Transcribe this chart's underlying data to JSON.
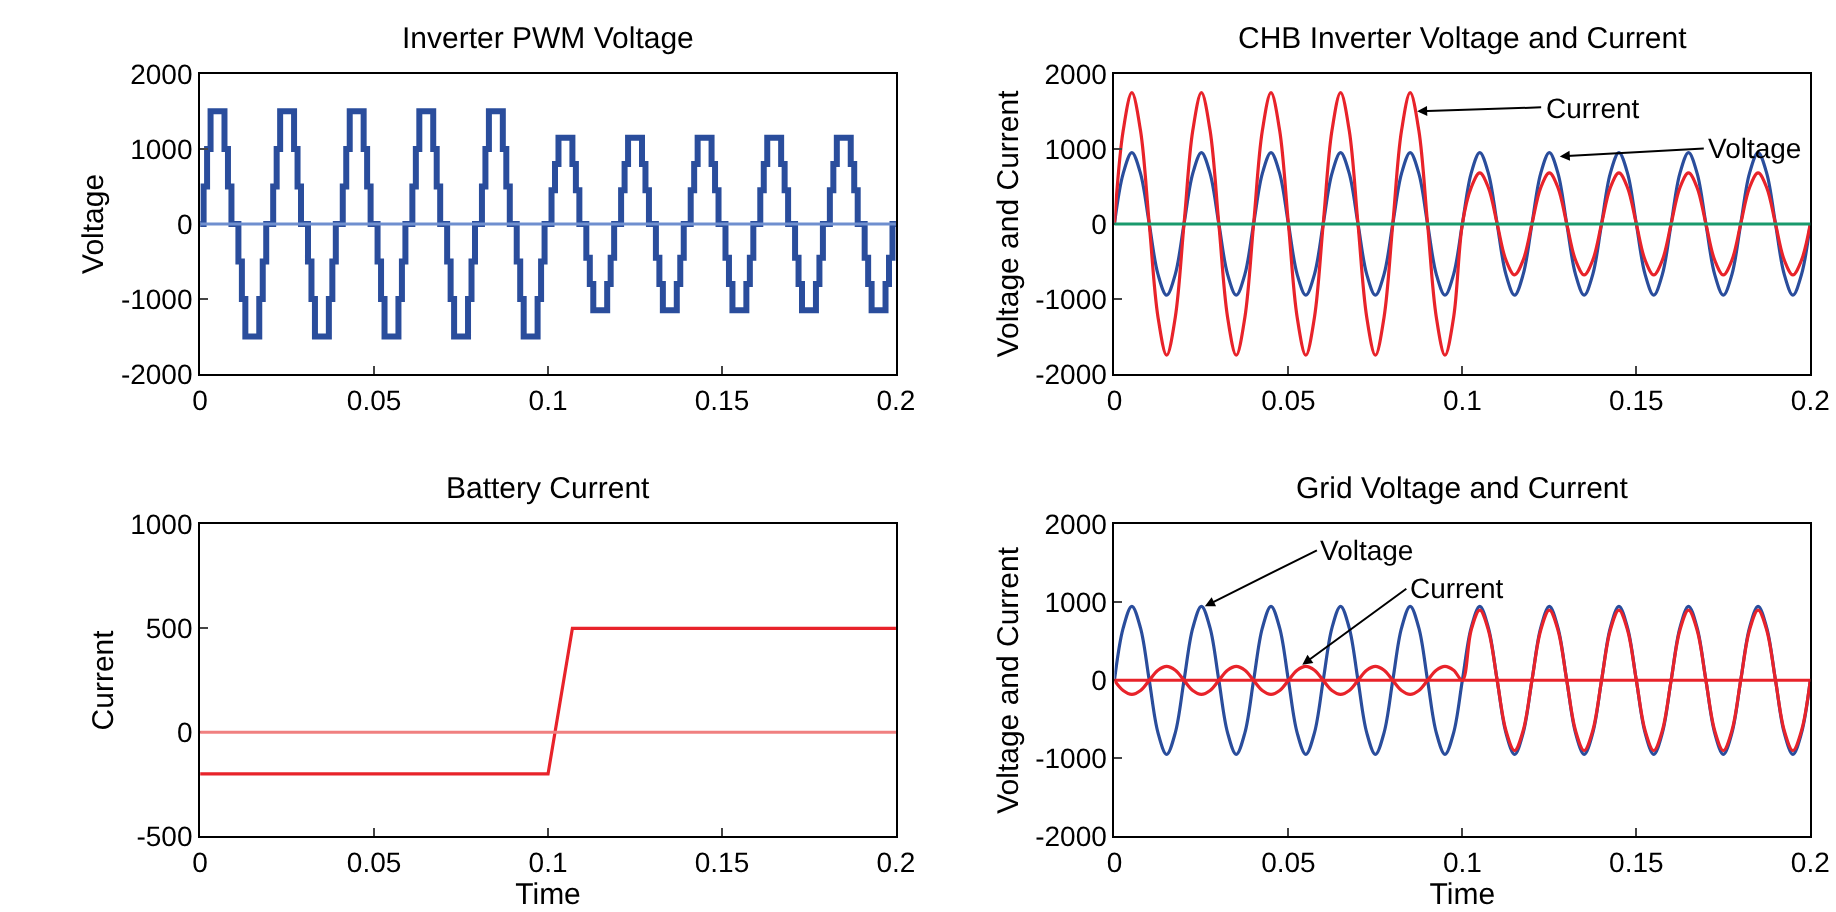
{
  "chart_data": [
    {
      "type": "step",
      "title": "Inverter PWM Voltage",
      "ylabel": "Voltage",
      "xlim": [
        0,
        0.2
      ],
      "ylim": [
        -2000,
        2000
      ],
      "xticks": [
        0,
        0.05,
        0.1,
        0.15,
        0.2
      ],
      "yticks": [
        -2000,
        -1000,
        0,
        1000,
        2000
      ],
      "ref_lines": [
        {
          "axis": "y",
          "value": 0,
          "color": "#6f8fcf"
        }
      ],
      "series": [
        {
          "color": "#2a4d9c",
          "x": [
            0,
            0.001,
            0.002,
            0.003,
            0.007,
            0.008,
            0.009,
            0.01,
            0.011,
            0.012,
            0.013,
            0.017,
            0.018,
            0.019,
            0.02,
            0.021,
            0.022,
            0.023,
            0.027,
            0.028,
            0.029,
            0.03,
            0.031,
            0.032,
            0.033,
            0.037,
            0.038,
            0.039,
            0.04,
            0.041,
            0.042,
            0.043,
            0.047,
            0.048,
            0.049,
            0.05,
            0.051,
            0.052,
            0.053,
            0.057,
            0.058,
            0.059,
            0.06,
            0.061,
            0.062,
            0.063,
            0.067,
            0.068,
            0.069,
            0.07,
            0.071,
            0.072,
            0.073,
            0.077,
            0.078,
            0.079,
            0.08,
            0.081,
            0.082,
            0.083,
            0.087,
            0.088,
            0.089,
            0.09,
            0.091,
            0.092,
            0.093,
            0.097,
            0.098,
            0.099,
            0.1,
            0.101,
            0.102,
            0.103,
            0.107,
            0.108,
            0.109,
            0.11,
            0.111,
            0.112,
            0.113,
            0.117,
            0.118,
            0.119,
            0.12,
            0.121,
            0.122,
            0.123,
            0.127,
            0.128,
            0.129,
            0.13,
            0.131,
            0.132,
            0.133,
            0.137,
            0.138,
            0.139,
            0.14,
            0.141,
            0.142,
            0.143,
            0.147,
            0.148,
            0.149,
            0.15,
            0.151,
            0.152,
            0.153,
            0.157,
            0.158,
            0.159,
            0.16,
            0.161,
            0.162,
            0.163,
            0.167,
            0.168,
            0.169,
            0.17,
            0.171,
            0.172,
            0.173,
            0.177,
            0.178,
            0.179,
            0.18,
            0.181,
            0.182,
            0.183,
            0.187,
            0.188,
            0.189,
            0.19,
            0.191,
            0.192,
            0.193,
            0.197,
            0.198,
            0.199,
            0.2
          ],
          "values": [
            0,
            500,
            1000,
            1500,
            1000,
            500,
            0,
            0,
            -500,
            -1000,
            -1500,
            -1000,
            -500,
            0,
            0,
            500,
            1000,
            1500,
            1000,
            500,
            0,
            0,
            -500,
            -1000,
            -1500,
            -1000,
            -500,
            0,
            0,
            500,
            1000,
            1500,
            1000,
            500,
            0,
            0,
            -500,
            -1000,
            -1500,
            -1000,
            -500,
            0,
            0,
            500,
            1000,
            1500,
            1000,
            500,
            0,
            0,
            -500,
            -1000,
            -1500,
            -1000,
            -500,
            0,
            0,
            500,
            1000,
            1500,
            1000,
            500,
            0,
            0,
            -500,
            -1000,
            -1500,
            -1000,
            -500,
            0,
            0,
            450,
            800,
            1150,
            800,
            450,
            0,
            0,
            -450,
            -800,
            -1150,
            -800,
            -450,
            0,
            0,
            450,
            800,
            1150,
            800,
            450,
            0,
            0,
            -450,
            -800,
            -1150,
            -800,
            -450,
            0,
            0,
            450,
            800,
            1150,
            800,
            450,
            0,
            0,
            -450,
            -800,
            -1150,
            -800,
            -450,
            0,
            0,
            450,
            800,
            1150,
            800,
            450,
            0,
            0,
            -450,
            -800,
            -1150,
            -800,
            -450,
            0,
            0,
            450,
            800,
            1150,
            800,
            450,
            0,
            0,
            -450,
            -800,
            -1150,
            -800,
            -450,
            0,
            0
          ]
        }
      ]
    },
    {
      "type": "line",
      "title": "CHB Inverter Voltage and Current",
      "ylabel": "Voltage and Current",
      "xlim": [
        0,
        0.2
      ],
      "ylim": [
        -2000,
        2000
      ],
      "xticks": [
        0,
        0.05,
        0.1,
        0.15,
        0.2
      ],
      "yticks": [
        -2000,
        -1000,
        0,
        1000,
        2000
      ],
      "ref_lines": [
        {
          "axis": "y",
          "value": 0,
          "color": "#1a9a6c"
        }
      ],
      "annotations": [
        {
          "text": "Current",
          "x": 0.087,
          "y": 1500
        },
        {
          "text": "Voltage",
          "x": 0.128,
          "y": 900
        }
      ],
      "x": [
        0,
        0.0025,
        0.005,
        0.0075,
        0.01,
        0.0125,
        0.015,
        0.0175,
        0.02,
        0.0225,
        0.025,
        0.0275,
        0.03,
        0.0325,
        0.035,
        0.0375,
        0.04,
        0.0425,
        0.045,
        0.0475,
        0.05,
        0.0525,
        0.055,
        0.0575,
        0.06,
        0.0625,
        0.065,
        0.0675,
        0.07,
        0.0725,
        0.075,
        0.0775,
        0.08,
        0.0825,
        0.085,
        0.0875,
        0.09,
        0.0925,
        0.095,
        0.0975,
        0.1,
        0.1025,
        0.105,
        0.1075,
        0.11,
        0.1125,
        0.115,
        0.1175,
        0.12,
        0.1225,
        0.125,
        0.1275,
        0.13,
        0.1325,
        0.135,
        0.1375,
        0.14,
        0.1425,
        0.145,
        0.1475,
        0.15,
        0.1525,
        0.155,
        0.1575,
        0.16,
        0.1625,
        0.165,
        0.1675,
        0.17,
        0.1725,
        0.175,
        0.1775,
        0.18,
        0.1825,
        0.185,
        0.1875,
        0.19,
        0.1925,
        0.195,
        0.1975,
        0.2
      ],
      "series": [
        {
          "color": "#2a4d9c",
          "values": [
            0,
            670,
            950,
            670,
            0,
            -670,
            -950,
            -670,
            0,
            670,
            950,
            670,
            0,
            -670,
            -950,
            -670,
            0,
            670,
            950,
            670,
            0,
            -670,
            -950,
            -670,
            0,
            670,
            950,
            670,
            0,
            -670,
            -950,
            -670,
            0,
            670,
            950,
            670,
            0,
            -670,
            -950,
            -670,
            0,
            670,
            950,
            670,
            0,
            -670,
            -950,
            -670,
            0,
            670,
            950,
            670,
            0,
            -670,
            -950,
            -670,
            0,
            670,
            950,
            670,
            0,
            -670,
            -950,
            -670,
            0,
            670,
            950,
            670,
            0,
            -670,
            -950,
            -670,
            0,
            670,
            950,
            670,
            0,
            -670,
            -950,
            -670,
            0
          ]
        },
        {
          "color": "#e8232a",
          "values": [
            0,
            1240,
            1750,
            1240,
            0,
            -1240,
            -1750,
            -1240,
            0,
            1240,
            1750,
            1240,
            0,
            -1240,
            -1750,
            -1240,
            0,
            1240,
            1750,
            1240,
            0,
            -1240,
            -1750,
            -1240,
            0,
            1240,
            1750,
            1240,
            0,
            -1240,
            -1750,
            -1240,
            0,
            1240,
            1750,
            1240,
            0,
            -1240,
            -1750,
            -1240,
            0,
            480,
            680,
            480,
            0,
            -480,
            -680,
            -480,
            0,
            480,
            680,
            480,
            0,
            -480,
            -680,
            -480,
            0,
            480,
            680,
            480,
            0,
            -480,
            -680,
            -480,
            0,
            480,
            680,
            480,
            0,
            -480,
            -680,
            -480,
            0,
            480,
            680,
            480,
            0,
            -480,
            -680,
            -480,
            0
          ]
        }
      ]
    },
    {
      "type": "line",
      "title": "Battery Current",
      "xlabel": "Time",
      "ylabel": "Current",
      "xlim": [
        0,
        0.2
      ],
      "ylim": [
        -500,
        1000
      ],
      "xticks": [
        0,
        0.05,
        0.1,
        0.15,
        0.2
      ],
      "yticks": [
        -500,
        0,
        500,
        1000
      ],
      "ref_lines": [
        {
          "axis": "y",
          "value": 0,
          "color": "#f08080"
        }
      ],
      "series": [
        {
          "color": "#e8232a",
          "x": [
            0,
            0.1,
            0.107,
            0.2
          ],
          "values": [
            -200,
            -200,
            500,
            500
          ]
        }
      ]
    },
    {
      "type": "line",
      "title": "Grid Voltage and Current",
      "xlabel": "Time",
      "ylabel": "Voltage and Current",
      "xlim": [
        0,
        0.2
      ],
      "ylim": [
        -2000,
        2000
      ],
      "xticks": [
        0,
        0.05,
        0.1,
        0.15,
        0.2
      ],
      "yticks": [
        -2000,
        -1000,
        0,
        1000,
        2000
      ],
      "ref_lines": [
        {
          "axis": "y",
          "value": 0,
          "color": "#e8232a"
        }
      ],
      "annotations": [
        {
          "text": "Voltage",
          "x": 0.026,
          "y": 950
        },
        {
          "text": "Current",
          "x": 0.054,
          "y": 200
        }
      ],
      "x": [
        0,
        0.0025,
        0.005,
        0.0075,
        0.01,
        0.0125,
        0.015,
        0.0175,
        0.02,
        0.0225,
        0.025,
        0.0275,
        0.03,
        0.0325,
        0.035,
        0.0375,
        0.04,
        0.0425,
        0.045,
        0.0475,
        0.05,
        0.0525,
        0.055,
        0.0575,
        0.06,
        0.0625,
        0.065,
        0.0675,
        0.07,
        0.0725,
        0.075,
        0.0775,
        0.08,
        0.0825,
        0.085,
        0.0875,
        0.09,
        0.0925,
        0.095,
        0.0975,
        0.1,
        0.1025,
        0.105,
        0.1075,
        0.11,
        0.1125,
        0.115,
        0.1175,
        0.12,
        0.1225,
        0.125,
        0.1275,
        0.13,
        0.1325,
        0.135,
        0.1375,
        0.14,
        0.1425,
        0.145,
        0.1475,
        0.15,
        0.1525,
        0.155,
        0.1575,
        0.16,
        0.1625,
        0.165,
        0.1675,
        0.17,
        0.1725,
        0.175,
        0.1775,
        0.18,
        0.1825,
        0.185,
        0.1875,
        0.19,
        0.1925,
        0.195,
        0.1975,
        0.2
      ],
      "series": [
        {
          "color": "#2a4d9c",
          "values": [
            0,
            670,
            950,
            670,
            0,
            -670,
            -950,
            -670,
            0,
            670,
            950,
            670,
            0,
            -670,
            -950,
            -670,
            0,
            670,
            950,
            670,
            0,
            -670,
            -950,
            -670,
            0,
            670,
            950,
            670,
            0,
            -670,
            -950,
            -670,
            0,
            670,
            950,
            670,
            0,
            -670,
            -950,
            -670,
            0,
            670,
            950,
            670,
            0,
            -670,
            -950,
            -670,
            0,
            670,
            950,
            670,
            0,
            -670,
            -950,
            -670,
            0,
            670,
            950,
            670,
            0,
            -670,
            -950,
            -670,
            0,
            670,
            950,
            670,
            0,
            -670,
            -950,
            -670,
            0,
            670,
            950,
            670,
            0,
            -670,
            -950,
            -670,
            0
          ]
        },
        {
          "color": "#e8232a",
          "values": [
            0,
            -130,
            -180,
            -130,
            0,
            130,
            180,
            130,
            0,
            -130,
            -180,
            -130,
            0,
            130,
            180,
            130,
            0,
            -130,
            -180,
            -130,
            0,
            130,
            180,
            130,
            0,
            -130,
            -180,
            -130,
            0,
            130,
            180,
            130,
            0,
            -130,
            -180,
            -130,
            0,
            130,
            180,
            130,
            0,
            640,
            900,
            640,
            0,
            -640,
            -900,
            -640,
            0,
            640,
            900,
            640,
            0,
            -640,
            -900,
            -640,
            0,
            640,
            900,
            640,
            0,
            -640,
            -900,
            -640,
            0,
            640,
            900,
            640,
            0,
            -640,
            -900,
            -640,
            0,
            640,
            900,
            640,
            0,
            -640,
            -900,
            -640,
            0
          ]
        }
      ]
    }
  ]
}
